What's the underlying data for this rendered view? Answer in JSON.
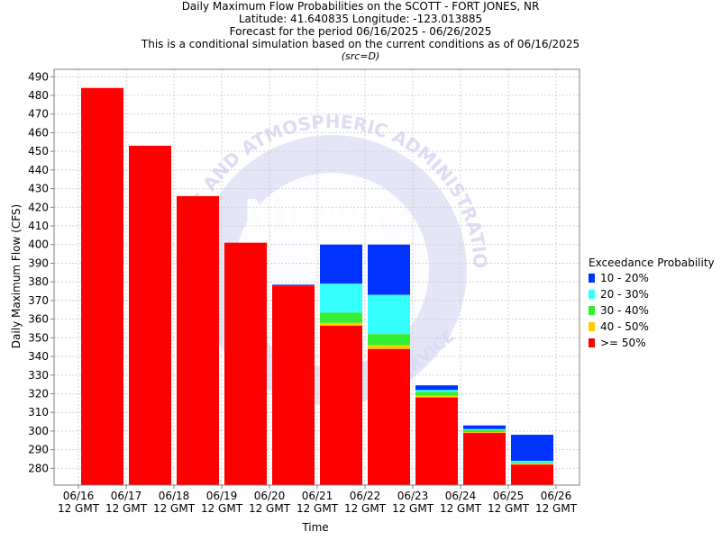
{
  "title_lines": [
    "Daily Maximum Flow Probabilities on the SCOTT - FORT JONES, NR",
    "Latitude: 41.640835 Longitude: -123.013885",
    "Forecast for the period 06/16/2025 - 06/26/2025",
    "This is a conditional simulation based on the current conditions as of 06/16/2025"
  ],
  "source_note": "(src=D)",
  "watermark": {
    "text_top": "OCEANIC AND ATMOSPHERIC ADMINISTRATION",
    "text_logo": "NOAA",
    "text_bottom": "SERVICE",
    "color": "#dcdcf5"
  },
  "chart_data": {
    "type": "bar",
    "stacked": true,
    "title": "Daily Maximum Flow Probabilities on the SCOTT - FORT JONES, NR",
    "xlabel": "Time",
    "ylabel": "Daily Maximum Flow (CFS)",
    "ylim": [
      271,
      494
    ],
    "y_ticks": [
      280,
      290,
      300,
      310,
      320,
      330,
      340,
      350,
      360,
      370,
      380,
      390,
      400,
      410,
      420,
      430,
      440,
      450,
      460,
      470,
      480,
      490
    ],
    "x_ticks": [
      {
        "date": "06/16",
        "time": "12 GMT"
      },
      {
        "date": "06/17",
        "time": "12 GMT"
      },
      {
        "date": "06/18",
        "time": "12 GMT"
      },
      {
        "date": "06/19",
        "time": "12 GMT"
      },
      {
        "date": "06/20",
        "time": "12 GMT"
      },
      {
        "date": "06/21",
        "time": "12 GMT"
      },
      {
        "date": "06/22",
        "time": "12 GMT"
      },
      {
        "date": "06/23",
        "time": "12 GMT"
      },
      {
        "date": "06/24",
        "time": "12 GMT"
      },
      {
        "date": "06/25",
        "time": "12 GMT"
      },
      {
        "date": "06/26",
        "time": "12 GMT"
      }
    ],
    "grid": true,
    "legend_title": "Exceedance Probability",
    "legend_position": "right",
    "series": [
      {
        "name": "10 - 20%",
        "color": "#0033ff",
        "tops": [
          484,
          453,
          426,
          401,
          378.5,
          400,
          400,
          324.5,
          303,
          298
        ]
      },
      {
        "name": "20 - 30%",
        "color": "#33ffff",
        "tops": [
          484,
          453,
          426,
          401,
          378,
          379,
          373,
          322,
          301,
          284
        ]
      },
      {
        "name": "30 - 40%",
        "color": "#33ee33",
        "tops": [
          484,
          453,
          426,
          401,
          378,
          363.5,
          352,
          321,
          300.5,
          283
        ]
      },
      {
        "name": "40 - 50%",
        "color": "#ffcc00",
        "tops": [
          484,
          453,
          426,
          401,
          378,
          358,
          346,
          319,
          299.5,
          282.5
        ]
      },
      {
        "name": ">= 50%",
        "color": "#ff0000",
        "tops": [
          484,
          453,
          426,
          401,
          378,
          356.5,
          344,
          318,
          299,
          282
        ]
      }
    ],
    "bar_positions": [
      0.5,
      1.5,
      2.5,
      3.5,
      4.5,
      5.5,
      6.5,
      7.5,
      8.5,
      9.5
    ]
  }
}
